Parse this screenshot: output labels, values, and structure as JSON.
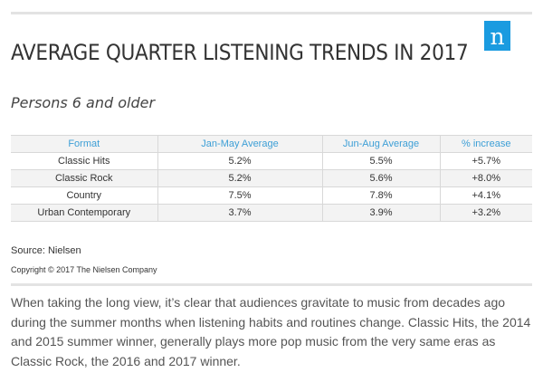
{
  "chart_data": {
    "type": "table",
    "title": "AVERAGE QUARTER LISTENING TRENDS IN 2017",
    "subtitle": "Persons 6 and older",
    "columns": [
      "Format",
      "Jan-May Average",
      "Jun-Aug Average",
      "% increase"
    ],
    "rows": [
      [
        "Classic Hits",
        "5.2%",
        "5.5%",
        "+5.7%"
      ],
      [
        "Classic Rock",
        "5.2%",
        "5.6%",
        "+8.0%"
      ],
      [
        "Country",
        "7.5%",
        "7.8%",
        "+4.1%"
      ],
      [
        "Urban Contemporary",
        "3.7%",
        "3.9%",
        "+3.2%"
      ]
    ],
    "series": [
      {
        "name": "Jan-May Average",
        "values": [
          5.2,
          5.2,
          7.5,
          3.7
        ]
      },
      {
        "name": "Jun-Aug Average",
        "values": [
          5.5,
          5.6,
          7.8,
          3.9
        ]
      },
      {
        "name": "% increase",
        "values": [
          5.7,
          8.0,
          4.1,
          3.2
        ]
      }
    ],
    "categories": [
      "Classic Hits",
      "Classic Rock",
      "Country",
      "Urban Contemporary"
    ]
  },
  "logo": {
    "glyph": "n",
    "icon": "nielsen-logo-icon",
    "color": "#1a9be0"
  },
  "footer": {
    "source": "Source: Nielsen",
    "copyright": "Copyright © 2017 The Nielsen Company"
  },
  "article": {
    "paragraph": "When taking the long view, it’s clear that audiences gravitate to music from decades ago during the summer months when listening habits and routines change. Classic Hits, the 2014 and 2015 summer winner, generally plays more pop music from the very same eras as Classic Rock, the 2016 and 2017 winner."
  },
  "colors": {
    "header_text": "#3d9fd6",
    "stripe": "#f3f3f3",
    "rule": "#e3e3e3"
  }
}
